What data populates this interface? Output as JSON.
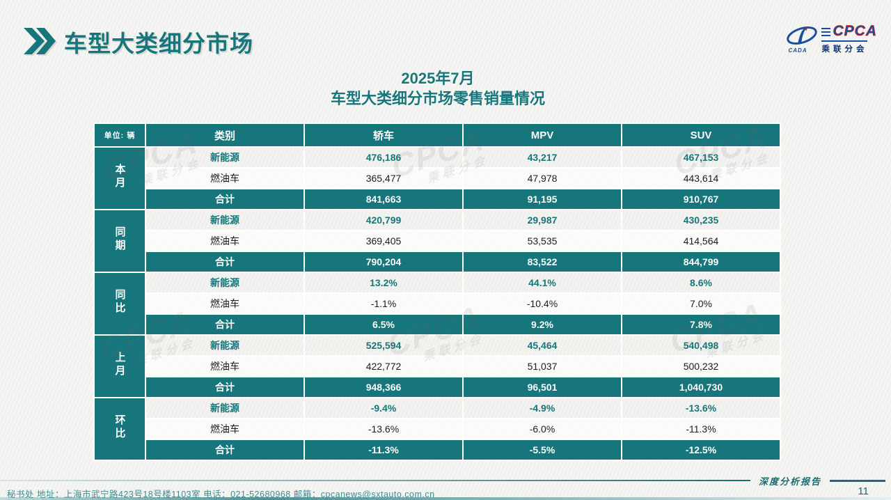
{
  "page": {
    "title": "车型大类细分市场",
    "subtitle_line1": "2025年7月",
    "subtitle_line2": "车型大类细分市场零售销量情况",
    "footer_contact": "秘书处   地址：上海市武宁路423号18号楼1103室 电话：021-52680968   邮箱：cpcanews@sxtauto.com.cn",
    "report_tag": "深度分析报告",
    "page_number": "11",
    "watermark_line1": "CPCA",
    "watermark_line2": "乘联分会"
  },
  "logo": {
    "oval_text": "CADA",
    "cpca_text": "CPCA",
    "chinese_name": "乘联分会"
  },
  "colors": {
    "teal": "#17757C",
    "logo_blue": "#1C4E9E",
    "logo_red": "#CC2229"
  },
  "table": {
    "unit_label": "单位: 辆",
    "columns": [
      "类别",
      "轿车",
      "MPV",
      "SUV"
    ],
    "groups": [
      {
        "label": "本月",
        "rows": [
          {
            "label": "新能源",
            "style": "nev",
            "values": [
              "476,186",
              "43,217",
              "467,153"
            ]
          },
          {
            "label": "燃油车",
            "style": "ice",
            "values": [
              "365,477",
              "47,978",
              "443,614"
            ]
          },
          {
            "label": "合计",
            "style": "total",
            "values": [
              "841,663",
              "91,195",
              "910,767"
            ]
          }
        ]
      },
      {
        "label": "同期",
        "rows": [
          {
            "label": "新能源",
            "style": "nev",
            "values": [
              "420,799",
              "29,987",
              "430,235"
            ]
          },
          {
            "label": "燃油车",
            "style": "ice",
            "values": [
              "369,405",
              "53,535",
              "414,564"
            ]
          },
          {
            "label": "合计",
            "style": "total",
            "values": [
              "790,204",
              "83,522",
              "844,799"
            ]
          }
        ]
      },
      {
        "label": "同比",
        "rows": [
          {
            "label": "新能源",
            "style": "nev",
            "values": [
              "13.2%",
              "44.1%",
              "8.6%"
            ]
          },
          {
            "label": "燃油车",
            "style": "ice",
            "values": [
              "-1.1%",
              "-10.4%",
              "7.0%"
            ]
          },
          {
            "label": "合计",
            "style": "total",
            "values": [
              "6.5%",
              "9.2%",
              "7.8%"
            ]
          }
        ]
      },
      {
        "label": "上月",
        "rows": [
          {
            "label": "新能源",
            "style": "nev",
            "values": [
              "525,594",
              "45,464",
              "540,498"
            ]
          },
          {
            "label": "燃油车",
            "style": "ice",
            "values": [
              "422,772",
              "51,037",
              "500,232"
            ]
          },
          {
            "label": "合计",
            "style": "total",
            "values": [
              "948,366",
              "96,501",
              "1,040,730"
            ]
          }
        ]
      },
      {
        "label": "环比",
        "rows": [
          {
            "label": "新能源",
            "style": "nev",
            "values": [
              "-9.4%",
              "-4.9%",
              "-13.6%"
            ]
          },
          {
            "label": "燃油车",
            "style": "ice",
            "values": [
              "-13.6%",
              "-6.0%",
              "-11.3%"
            ]
          },
          {
            "label": "合计",
            "style": "total",
            "values": [
              "-11.3%",
              "-5.5%",
              "-12.5%"
            ]
          }
        ]
      }
    ]
  }
}
